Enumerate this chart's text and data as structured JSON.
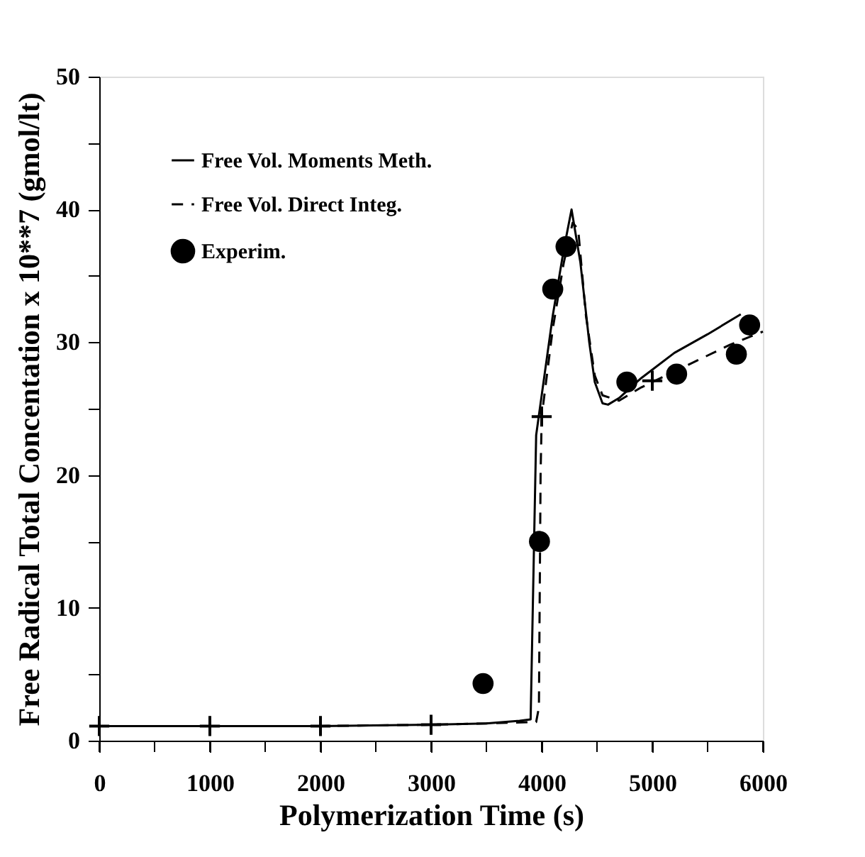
{
  "chart_data": {
    "type": "line",
    "xlabel": "Polymerization Time (s)",
    "ylabel": "Free Radical Total Concentation x 10**7 (gmol/lt)",
    "xlim": [
      0,
      6000
    ],
    "ylim": [
      0,
      50
    ],
    "xticks": [
      0,
      {
        "value": 500,
        "label": null
      },
      1000,
      {
        "value": 1500,
        "label": null
      },
      2000,
      {
        "value": 2500,
        "label": null
      },
      3000,
      {
        "value": 3500,
        "label": null
      },
      4000,
      {
        "value": 4500,
        "label": null
      },
      5000,
      {
        "value": 5500,
        "label": null
      },
      6000
    ],
    "yticks": [
      0,
      {
        "value": 5,
        "label": null
      },
      10,
      {
        "value": 15,
        "label": null
      },
      20,
      {
        "value": 25,
        "label": null
      },
      30,
      {
        "value": 35,
        "label": null
      },
      40,
      {
        "value": 45,
        "label": null
      },
      50
    ],
    "grid": false,
    "legend": "top left",
    "series": [
      {
        "name": "Free Vol. Moments Meth.",
        "color": "#000000",
        "line_style": "solid",
        "marker": "none",
        "x": [
          0,
          1000,
          2000,
          3000,
          3500,
          3800,
          3900,
          3950,
          4000,
          4100,
          4200,
          4270,
          4350,
          4430,
          4480,
          4550,
          4600,
          4700,
          4900,
          5200,
          5500,
          5800
        ],
        "values": [
          1.1,
          1.1,
          1.1,
          1.2,
          1.3,
          1.5,
          1.6,
          23,
          26,
          32,
          37,
          40,
          36,
          30,
          27,
          25.4,
          25.3,
          25.8,
          27.3,
          29.2,
          30.6,
          32.1
        ]
      },
      {
        "name": "Free Vol. Direct Integ.",
        "color": "#000000",
        "line_style": "dashed",
        "marker": "none",
        "x": [
          0,
          1000,
          2000,
          3000,
          3500,
          3950,
          3975,
          3990,
          4000,
          4100,
          4200,
          4280,
          4330,
          4400,
          4480,
          4550,
          4700,
          4900,
          5000,
          5300,
          5700,
          6000
        ],
        "values": [
          1.1,
          1.1,
          1.1,
          1.2,
          1.3,
          1.4,
          2.5,
          20,
          24.4,
          31,
          36,
          39,
          38.5,
          32,
          27.5,
          26,
          25.6,
          26.6,
          27,
          28.2,
          29.8,
          30.8
        ]
      },
      {
        "type": "scatter",
        "color": "#000000",
        "marker": "cross",
        "x": [
          0,
          1000,
          2000,
          3000,
          4000,
          5000
        ],
        "values": [
          1.1,
          1.1,
          1.1,
          1.2,
          24.4,
          27.1
        ]
      },
      {
        "name": "Experim.",
        "type": "scatter",
        "color": "#000000",
        "marker": "circle",
        "x": [
          3470,
          3980,
          4100,
          4220,
          4770,
          5220,
          5760,
          5880
        ],
        "values": [
          4.3,
          15,
          34,
          37.2,
          27,
          27.6,
          29.1,
          31.3
        ]
      }
    ]
  }
}
